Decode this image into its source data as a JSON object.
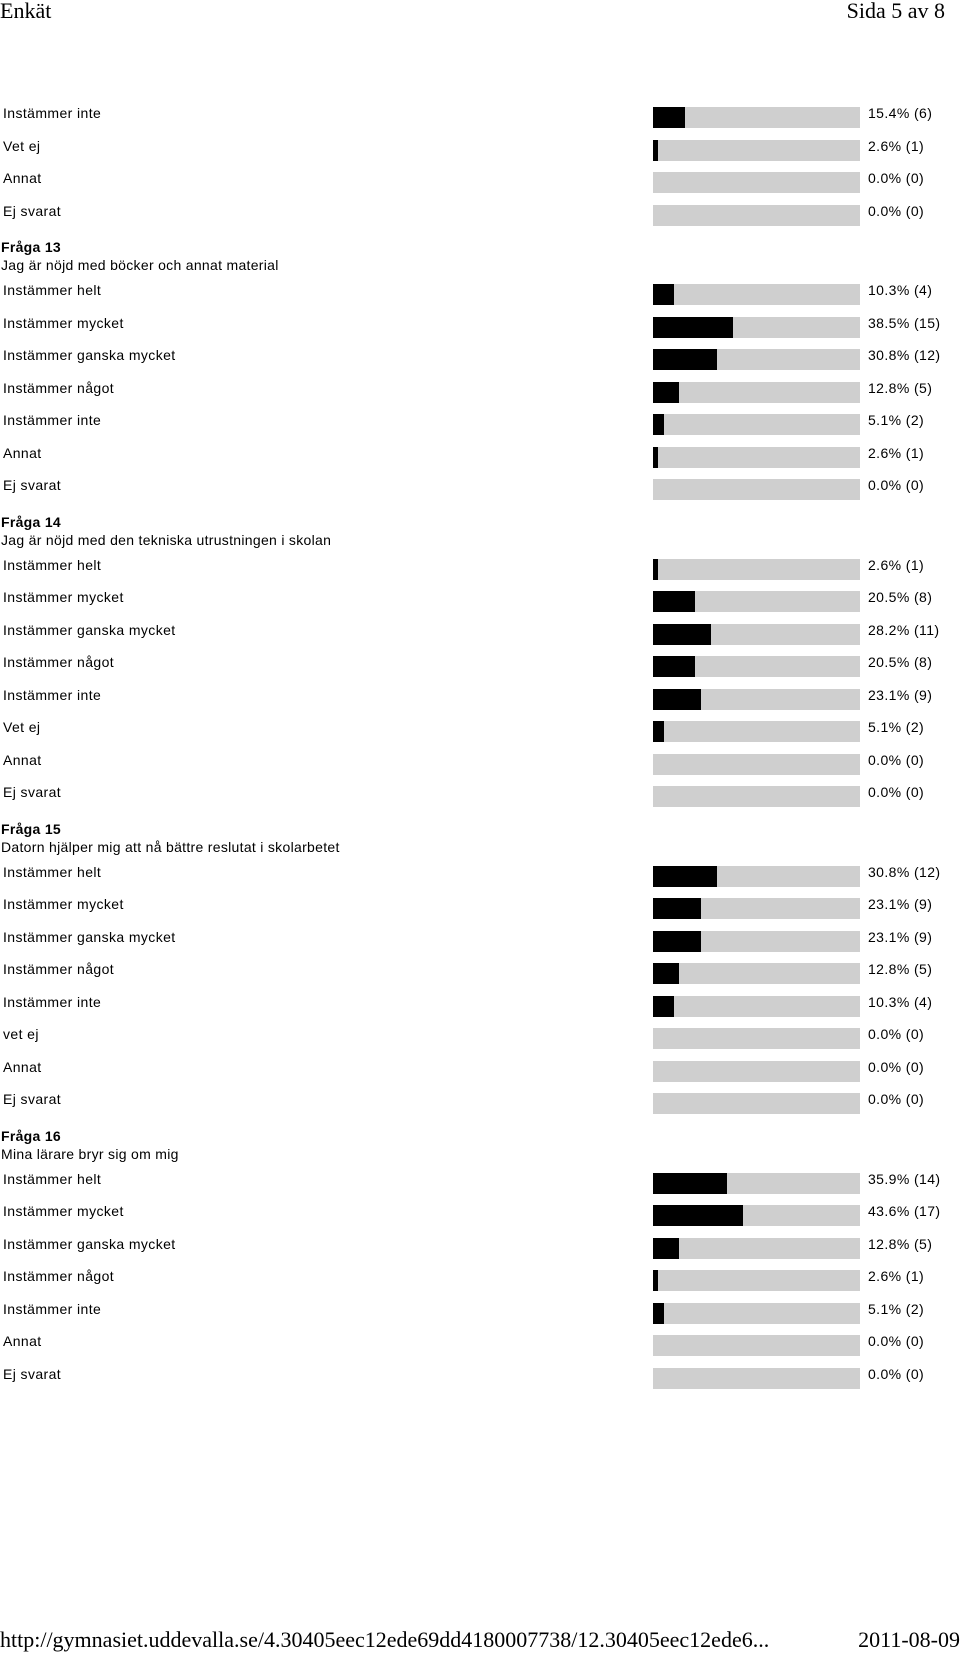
{
  "header": {
    "left": "Enkät",
    "right": "Sida 5 av 8"
  },
  "sections": [
    {
      "title": "",
      "text": "",
      "rows": [
        {
          "label": "Instämmer inte",
          "value": "15.4% (6)",
          "fraction": 0.154
        },
        {
          "label": "Vet ej",
          "value": "2.6% (1)",
          "fraction": 0.026
        },
        {
          "label": "Annat",
          "value": "0.0% (0)",
          "fraction": 0.0
        },
        {
          "label": "Ej svarat",
          "value": "0.0% (0)",
          "fraction": 0.0
        }
      ]
    },
    {
      "title": "Fråga 13",
      "text": "Jag är nöjd med böcker och annat material",
      "rows": [
        {
          "label": "Instämmer helt",
          "value": "10.3% (4)",
          "fraction": 0.103
        },
        {
          "label": "Instämmer mycket",
          "value": "38.5% (15)",
          "fraction": 0.385
        },
        {
          "label": "Instämmer ganska mycket",
          "value": "30.8% (12)",
          "fraction": 0.308
        },
        {
          "label": "Instämmer något",
          "value": "12.8% (5)",
          "fraction": 0.128
        },
        {
          "label": "Instämmer inte",
          "value": "5.1% (2)",
          "fraction": 0.051
        },
        {
          "label": "Annat",
          "value": "2.6% (1)",
          "fraction": 0.026
        },
        {
          "label": "Ej svarat",
          "value": "0.0% (0)",
          "fraction": 0.0
        }
      ]
    },
    {
      "title": "Fråga 14",
      "text": "Jag är nöjd med den tekniska utrustningen i skolan",
      "rows": [
        {
          "label": "Instämmer helt",
          "value": "2.6% (1)",
          "fraction": 0.026
        },
        {
          "label": "Instämmer mycket",
          "value": "20.5% (8)",
          "fraction": 0.205
        },
        {
          "label": "Instämmer ganska mycket",
          "value": "28.2% (11)",
          "fraction": 0.282
        },
        {
          "label": "Instämmer något",
          "value": "20.5% (8)",
          "fraction": 0.205
        },
        {
          "label": "Instämmer inte",
          "value": "23.1% (9)",
          "fraction": 0.231
        },
        {
          "label": "Vet ej",
          "value": "5.1% (2)",
          "fraction": 0.051
        },
        {
          "label": "Annat",
          "value": "0.0% (0)",
          "fraction": 0.0
        },
        {
          "label": "Ej svarat",
          "value": "0.0% (0)",
          "fraction": 0.0
        }
      ]
    },
    {
      "title": "Fråga 15",
      "text": "Datorn hjälper mig att nå bättre reslutat i skolarbetet",
      "rows": [
        {
          "label": "Instämmer helt",
          "value": "30.8% (12)",
          "fraction": 0.308
        },
        {
          "label": "Instämmer mycket",
          "value": "23.1% (9)",
          "fraction": 0.231
        },
        {
          "label": "Instämmer ganska mycket",
          "value": "23.1% (9)",
          "fraction": 0.231
        },
        {
          "label": "Instämmer något",
          "value": "12.8% (5)",
          "fraction": 0.128
        },
        {
          "label": "Instämmer inte",
          "value": "10.3% (4)",
          "fraction": 0.103
        },
        {
          "label": "vet ej",
          "value": "0.0% (0)",
          "fraction": 0.0
        },
        {
          "label": "Annat",
          "value": "0.0% (0)",
          "fraction": 0.0
        },
        {
          "label": "Ej svarat",
          "value": "0.0% (0)",
          "fraction": 0.0
        }
      ]
    },
    {
      "title": "Fråga 16",
      "text": "Mina lärare bryr sig om mig",
      "rows": [
        {
          "label": "Instämmer helt",
          "value": "35.9% (14)",
          "fraction": 0.359
        },
        {
          "label": "Instämmer mycket",
          "value": "43.6% (17)",
          "fraction": 0.436
        },
        {
          "label": "Instämmer ganska mycket",
          "value": "12.8% (5)",
          "fraction": 0.128
        },
        {
          "label": "Instämmer något",
          "value": "2.6% (1)",
          "fraction": 0.026
        },
        {
          "label": "Instämmer inte",
          "value": "5.1% (2)",
          "fraction": 0.051
        },
        {
          "label": "Annat",
          "value": "0.0% (0)",
          "fraction": 0.0
        },
        {
          "label": "Ej svarat",
          "value": "0.0% (0)",
          "fraction": 0.0
        }
      ]
    }
  ],
  "footer": {
    "url": "http://gymnasiet.uddevalla.se/4.30405eec12ede69dd4180007738/12.30405eec12ede6...",
    "date": "2011-08-09"
  }
}
